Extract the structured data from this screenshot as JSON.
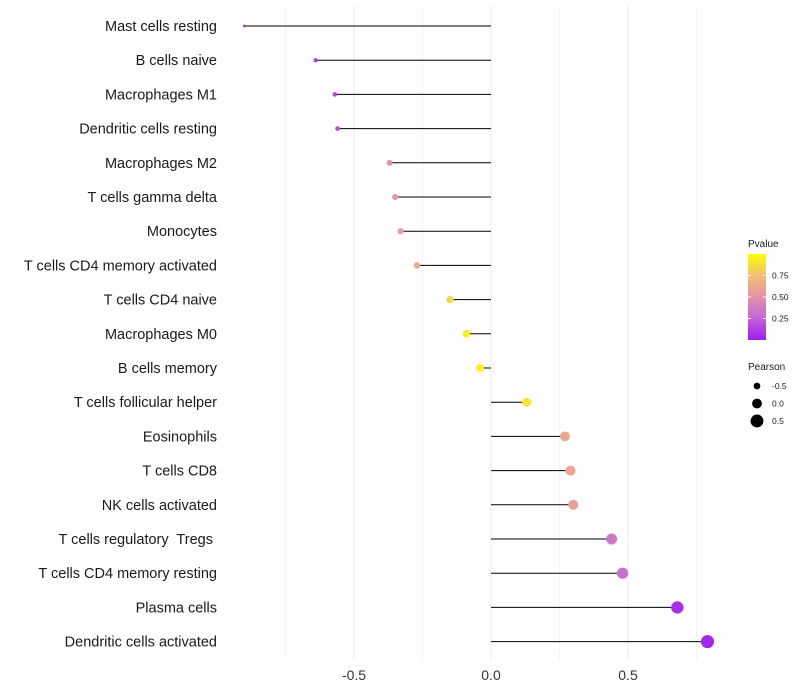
{
  "chart_data": {
    "type": "lollipop",
    "title": "",
    "xlabel": "",
    "ylabel": "",
    "xlim": [
      -0.9,
      0.82
    ],
    "x_ticks": [
      -0.5,
      0.0,
      0.5
    ],
    "x_tick_labels": [
      "-0.5",
      "0.0",
      "0.5"
    ],
    "grid": true,
    "categories": [
      "Mast cells resting",
      "B cells naive",
      "Macrophages M1",
      "Dendritic cells resting",
      "Macrophages M2",
      "T cells gamma delta",
      "Monocytes",
      "T cells CD4 memory activated",
      "T cells CD4 naive",
      "Macrophages M0",
      "B cells memory",
      "T cells follicular helper",
      "Eosinophils",
      "T cells CD8",
      "NK cells activated",
      "T cells regulatory  Tregs ",
      "T cells CD4 memory resting",
      "Plasma cells",
      "Dendritic cells activated"
    ],
    "pearson": [
      -0.9,
      -0.64,
      -0.57,
      -0.56,
      -0.37,
      -0.35,
      -0.33,
      -0.27,
      -0.15,
      -0.09,
      -0.04,
      0.13,
      0.27,
      0.29,
      0.3,
      0.44,
      0.48,
      0.68,
      0.79
    ],
    "pvalue": [
      0.02,
      0.1,
      0.15,
      0.18,
      0.5,
      0.52,
      0.55,
      0.62,
      0.85,
      0.93,
      0.95,
      0.9,
      0.62,
      0.6,
      0.58,
      0.35,
      0.3,
      0.06,
      0.02
    ],
    "legend_pvalue": {
      "title": "Pvalue",
      "ticks": [
        0.25,
        0.5,
        0.75
      ],
      "tick_labels": [
        "0.25",
        "0.50",
        "0.75"
      ],
      "range": [
        0.0,
        1.0
      ],
      "color_low": "#a020f0",
      "color_mid": "#e89aa0",
      "color_high": "#ffff00"
    },
    "legend_pearson": {
      "title": "Pearson",
      "values": [
        -0.5,
        0.0,
        0.5
      ],
      "labels": [
        "-0.5",
        "0.0",
        "0.5"
      ]
    },
    "legend_placement": "right"
  }
}
